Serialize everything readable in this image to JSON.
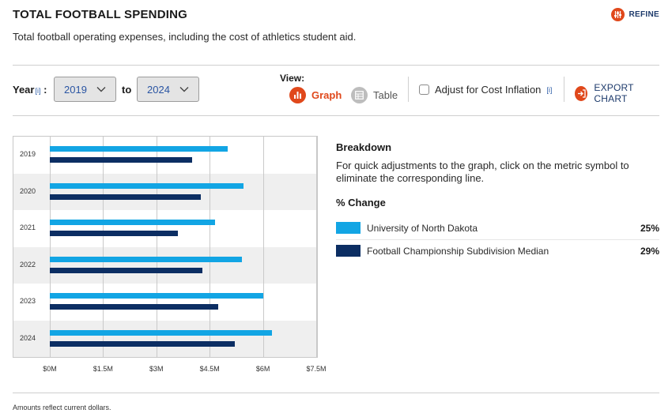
{
  "header": {
    "title": "TOTAL FOOTBALL SPENDING",
    "subtitle": "Total football operating expenses, including the cost of athletics student aid.",
    "refine_label": "REFINE"
  },
  "controls": {
    "year_label": "Year",
    "info_marker": "[i]",
    "colon": ":",
    "from_year": "2019",
    "to_label": "to",
    "to_year": "2024",
    "view_label": "View:",
    "graph_label": "Graph",
    "table_label": "Table",
    "adjust_label": "Adjust for Cost Inflation",
    "adjust_checked": false,
    "export_label": "EXPORT CHART"
  },
  "colors": {
    "und": "#12a5e4",
    "fcs": "#0c2e63",
    "accent": "#e0481b"
  },
  "chart_data": {
    "type": "bar",
    "orientation": "horizontal",
    "categories": [
      "2019",
      "2020",
      "2021",
      "2022",
      "2023",
      "2024"
    ],
    "series": [
      {
        "name": "University of North Dakota",
        "values": [
          5.0,
          5.45,
          4.65,
          5.4,
          6.0,
          6.25
        ]
      },
      {
        "name": "Football Championship Subdivision Median",
        "values": [
          4.0,
          4.25,
          3.6,
          4.3,
          4.75,
          5.2
        ]
      }
    ],
    "xlim": [
      0,
      7.5
    ],
    "x_ticks": [
      0,
      1.5,
      3,
      4.5,
      6,
      7.5
    ],
    "x_tick_labels": [
      "$0M",
      "$1.5M",
      "$3M",
      "$4.5M",
      "$6M",
      "$7.5M"
    ],
    "grid": true,
    "legend": "right"
  },
  "breakdown": {
    "title": "Breakdown",
    "text": "For quick adjustments to the graph, click on the metric symbol to eliminate the corresponding line.",
    "pct_title": "% Change",
    "rows": [
      {
        "name": "University of North Dakota",
        "value": "25%"
      },
      {
        "name": "Football Championship Subdivision Median",
        "value": "29%"
      }
    ]
  },
  "footnote": "Amounts reflect current dollars."
}
